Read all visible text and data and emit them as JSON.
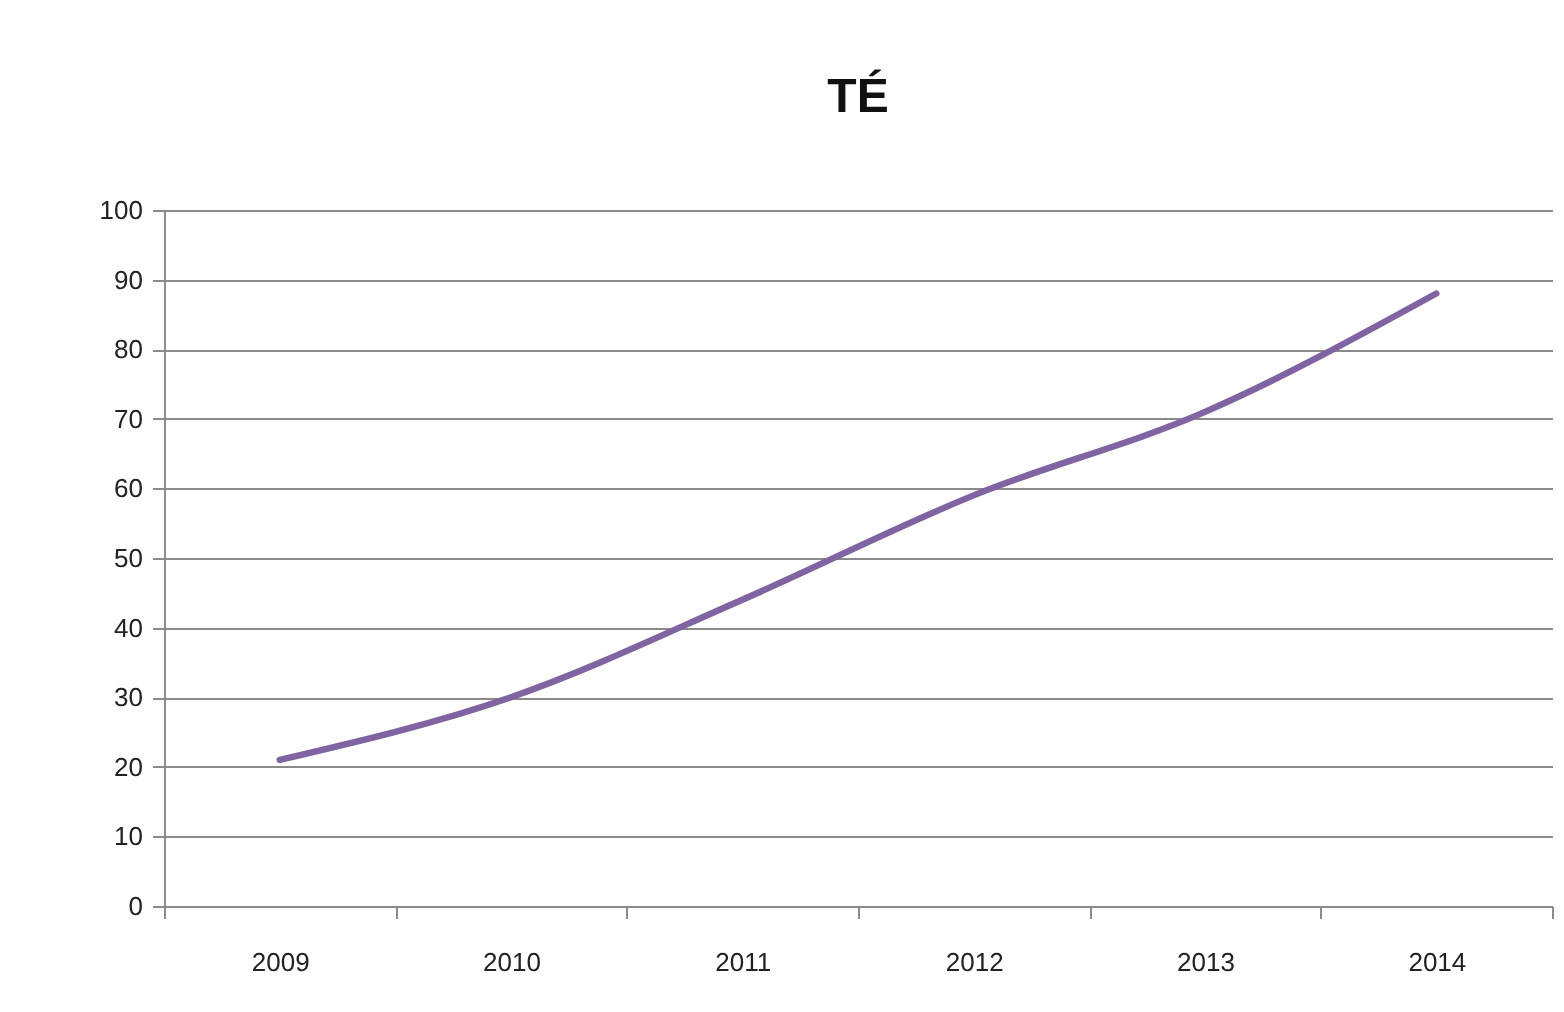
{
  "chart_data": {
    "type": "line",
    "title": "TÉ",
    "categories": [
      "2009",
      "2010",
      "2011",
      "2012",
      "2013",
      "2014"
    ],
    "values": [
      21,
      30,
      44,
      59,
      71,
      88
    ],
    "color": "#8064a2",
    "ylim": [
      0,
      100
    ],
    "yticks": [
      0,
      10,
      20,
      30,
      40,
      50,
      60,
      70,
      80,
      90,
      100
    ],
    "grid": "y"
  }
}
